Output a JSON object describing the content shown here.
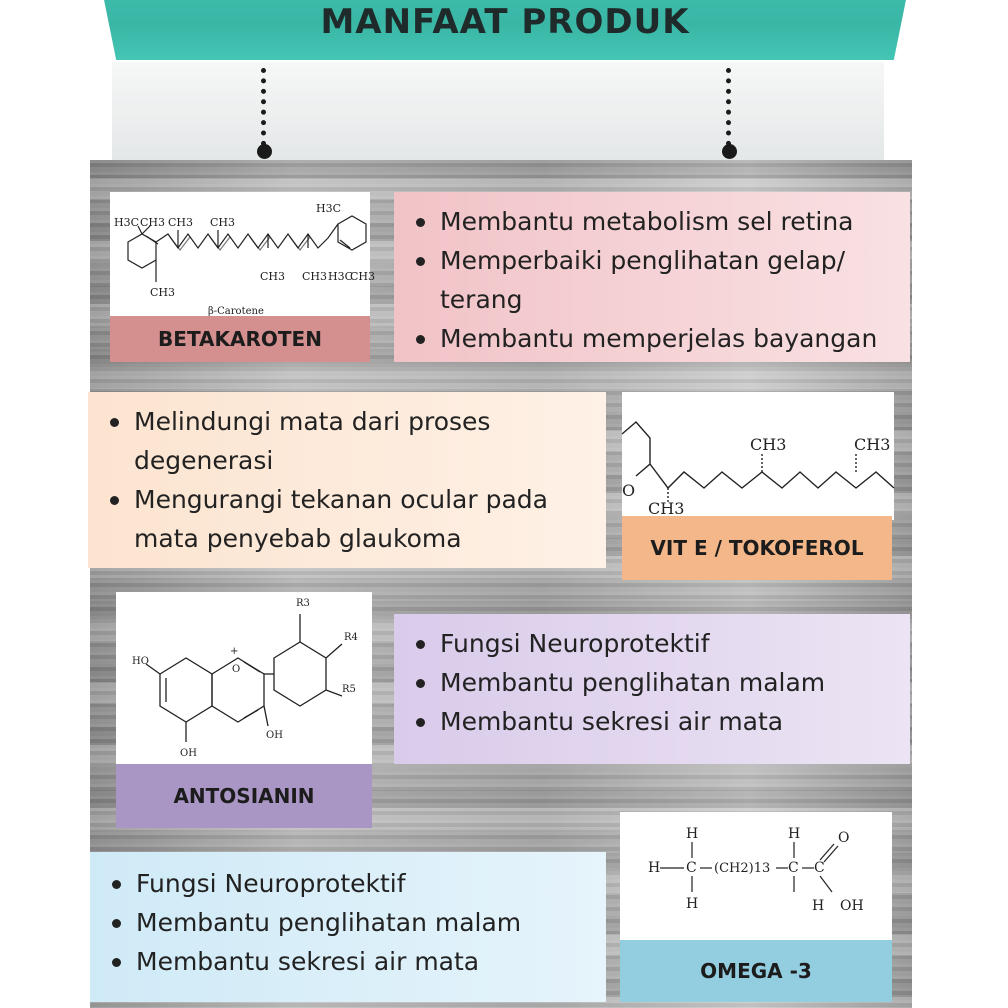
{
  "header": {
    "title": "MANFAAT PRODUK"
  },
  "sections": [
    {
      "label": "BETAKAROTEN",
      "image_caption": "β-Carotene",
      "points": [
        "Membantu metabolism sel retina",
        "Memperbaiki penglihatan gelap/",
        "terang",
        "Membantu memperjelas bayangan"
      ],
      "accent": "#d48f8f",
      "panel_color": "#f3c9cd"
    },
    {
      "label": "VIT E / TOKOFEROL",
      "points": [
        "Melindungi mata dari proses",
        "degenerasi",
        "Mengurangi tekanan ocular pada",
        "mata penyebab glaukoma"
      ],
      "accent": "#f2b889",
      "panel_color": "#fbe3cf"
    },
    {
      "label": "ANTOSIANIN",
      "points": [
        "Fungsi Neuroprotektif",
        "Membantu penglihatan malam",
        "Membantu sekresi air mata"
      ],
      "accent": "#a996c4",
      "panel_color": "#e2d6ee"
    },
    {
      "label": "OMEGA -3",
      "points": [
        "Fungsi Neuroprotektif",
        "Membantu penglihatan malam",
        "Membantu sekresi air mata"
      ],
      "accent": "#92cde0",
      "panel_color": "#d6eef8"
    }
  ],
  "molecules": {
    "betakaroten": {
      "methyls": [
        "H3C",
        "CH3",
        "CH3",
        "CH3",
        "CH3",
        "CH3",
        "CH3",
        "H3C",
        "CH3",
        "H3C"
      ]
    },
    "tokoferol": {
      "labels": [
        "CH3",
        "CH3",
        "CH3",
        "O"
      ]
    },
    "antosianin": {
      "labels": [
        "R3",
        "R4",
        "R5",
        "HO",
        "OH",
        "OH",
        "+",
        "O"
      ]
    },
    "omega3": {
      "labels": [
        "H",
        "H",
        "H",
        "H",
        "H",
        "O",
        "OH",
        "C",
        "(CH2)13",
        "C",
        "C"
      ]
    }
  }
}
